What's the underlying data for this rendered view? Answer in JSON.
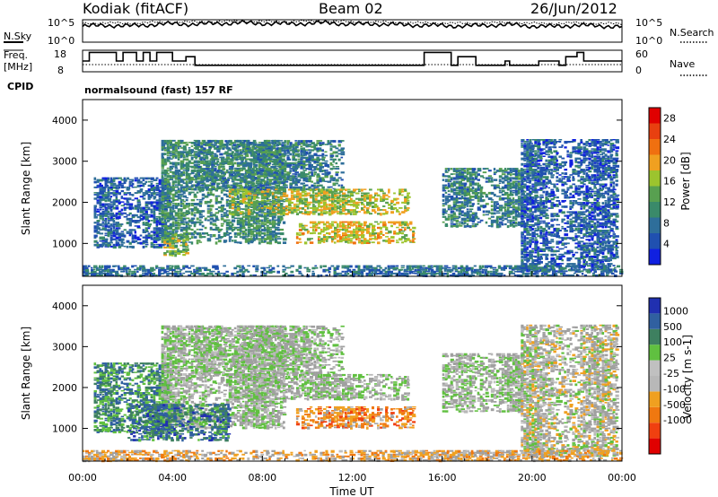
{
  "header": {
    "station": "Kodiak (fitACF)",
    "beam": "Beam 02",
    "date": "26/Jun/2012"
  },
  "summary": {
    "left_top_label": "N.Sky",
    "left_top_ticks": [
      "10^5",
      "10^0"
    ],
    "right_top_label": "N.Search",
    "right_top_ticks": [
      "10^5",
      "10^0"
    ],
    "freq_label_1": "Freq.",
    "freq_label_2": "[MHz]",
    "freq_ticks": [
      "18",
      "8"
    ],
    "nave_label": "Nave",
    "nave_ticks": [
      "60",
      "0"
    ],
    "cpid_label": "CPID",
    "cpid_value": "normalsound (fast) 157 RF"
  },
  "colors": {
    "power_scale": [
      "#1020e0",
      "#2050b0",
      "#2e6e9a",
      "#3a8a6a",
      "#58a050",
      "#9cc42e",
      "#f0a020",
      "#f07010",
      "#e84010",
      "#e00000"
    ],
    "velocity_scale": [
      "#2030b0",
      "#3060a0",
      "#3e8060",
      "#60c040",
      "#c0c0c0",
      "#b8b8b8",
      "#f0a020",
      "#f07810",
      "#f04010",
      "#e00000"
    ],
    "ground_scatter": "#a0a0a0"
  },
  "chart_data": [
    {
      "type": "line",
      "panel": "N.Sky / N.Search",
      "x_range_hours": [
        0,
        24
      ],
      "ylim_log10": [
        0,
        5
      ],
      "series": [
        {
          "name": "N.Sky",
          "values_log10": [
            3.5,
            3.8,
            3.6,
            3.9,
            4.1,
            4.0,
            4.2,
            4.3,
            4.2,
            4.1,
            4.2,
            4.3,
            4.0,
            4.1,
            3.9,
            3.8,
            3.7,
            3.6,
            3.8,
            3.9,
            3.6,
            3.5,
            3.8,
            3.6,
            3.5
          ]
        },
        {
          "name": "N.Search",
          "values_log10": [
            4.2,
            4.3,
            4.2,
            4.4,
            4.5,
            4.5,
            4.6,
            4.7,
            4.6,
            4.6,
            4.7,
            4.7,
            4.5,
            4.5,
            4.4,
            4.3,
            4.3,
            4.2,
            4.3,
            4.4,
            4.2,
            4.2,
            4.3,
            4.2,
            4.1
          ]
        }
      ]
    },
    {
      "type": "line",
      "panel": "Freq / Nave",
      "x_range_hours": [
        0,
        24
      ],
      "ylim_freq": [
        8,
        18
      ],
      "ylim_nave": [
        0,
        60
      ],
      "series": [
        {
          "name": "Freq.",
          "x": [
            0,
            0.3,
            1.5,
            1.8,
            2.4,
            2.7,
            3.0,
            3.3,
            4.0,
            4.6,
            5.0,
            15.0,
            15.2,
            16.4,
            16.7,
            17.5,
            18.8,
            19.0,
            20.0,
            20.3,
            21.2,
            21.5,
            22.0,
            22.3,
            24.0
          ],
          "values": [
            13,
            17,
            13,
            17,
            13,
            17,
            13,
            17,
            13,
            15,
            11,
            11,
            17,
            11,
            15,
            11,
            13,
            11,
            11,
            13,
            11,
            15,
            17,
            13,
            13
          ]
        },
        {
          "name": "Nave",
          "x": [
            0,
            24
          ],
          "values": [
            20,
            20
          ]
        }
      ]
    },
    {
      "type": "heatmap",
      "panel": "Power",
      "x_range_hours": [
        0,
        24
      ],
      "x_ticks": [
        "00:00",
        "04:00",
        "08:00",
        "12:00",
        "16:00",
        "20:00",
        "00:00"
      ],
      "ylabel": "Slant Range [km]",
      "ylim": [
        200,
        4500
      ],
      "y_ticks": [
        1000,
        2000,
        3000,
        4000
      ],
      "colorbar_label": "Power [dB]",
      "colorbar_ticks": [
        4,
        8,
        12,
        16,
        20,
        24,
        28
      ],
      "colorbar_range": [
        0,
        30
      ],
      "bands": [
        {
          "t0": 0.5,
          "t1": 3.8,
          "r0": 900,
          "r1": 2600,
          "level": 0.2
        },
        {
          "t0": 3.5,
          "t1": 9.0,
          "r0": 1000,
          "r1": 3500,
          "level": 0.35
        },
        {
          "t0": 5.0,
          "t1": 11.5,
          "r0": 2300,
          "r1": 3500,
          "level": 0.3
        },
        {
          "t0": 6.5,
          "t1": 14.5,
          "r0": 1700,
          "r1": 2300,
          "level": 0.55
        },
        {
          "t0": 9.5,
          "t1": 14.7,
          "r0": 1000,
          "r1": 1500,
          "level": 0.6
        },
        {
          "t0": 3.6,
          "t1": 4.6,
          "r0": 700,
          "r1": 1200,
          "level": 0.5
        },
        {
          "t0": 16.0,
          "t1": 19.5,
          "r0": 1400,
          "r1": 2800,
          "level": 0.3
        },
        {
          "t0": 19.5,
          "t1": 23.8,
          "r0": 300,
          "r1": 3500,
          "level": 0.2
        },
        {
          "t0": 0.0,
          "t1": 24.0,
          "r0": 200,
          "r1": 450,
          "level": 0.25
        }
      ]
    },
    {
      "type": "heatmap",
      "panel": "Velocity",
      "x_range_hours": [
        0,
        24
      ],
      "x_ticks": [
        "00:00",
        "04:00",
        "08:00",
        "12:00",
        "16:00",
        "20:00",
        "00:00"
      ],
      "xlabel": "Time UT",
      "ylabel": "Slant Range [km]",
      "ylim": [
        200,
        4500
      ],
      "y_ticks": [
        1000,
        2000,
        3000,
        4000
      ],
      "colorbar_label": "Velocity [m s-1]",
      "colorbar_ticks": [
        1000,
        500,
        100,
        25,
        -25,
        -100,
        -500,
        -1000
      ],
      "bands": [
        {
          "t0": 0.5,
          "t1": 3.8,
          "r0": 900,
          "r1": 2600,
          "level": 0.25
        },
        {
          "t0": 3.5,
          "t1": 9.0,
          "r0": 1000,
          "r1": 3500,
          "level": 0.45
        },
        {
          "t0": 5.0,
          "t1": 11.5,
          "r0": 2300,
          "r1": 3500,
          "level": 0.45
        },
        {
          "t0": 6.5,
          "t1": 14.5,
          "r0": 1700,
          "r1": 2300,
          "level": 0.45
        },
        {
          "t0": 9.5,
          "t1": 14.7,
          "r0": 1000,
          "r1": 1500,
          "level": 0.7
        },
        {
          "t0": 2.0,
          "t1": 6.5,
          "r0": 700,
          "r1": 1600,
          "level": 0.2
        },
        {
          "t0": 16.0,
          "t1": 19.5,
          "r0": 1400,
          "r1": 2800,
          "level": 0.45
        },
        {
          "t0": 19.5,
          "t1": 23.8,
          "r0": 300,
          "r1": 3500,
          "level": 0.5
        },
        {
          "t0": 0.0,
          "t1": 24.0,
          "r0": 200,
          "r1": 450,
          "level": 0.62
        }
      ]
    }
  ]
}
